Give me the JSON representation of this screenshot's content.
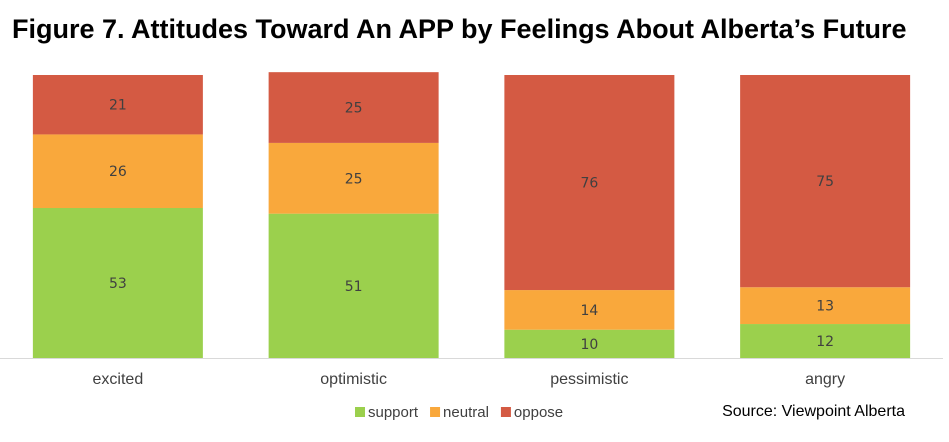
{
  "title": "Figure 7. Attitudes Toward An APP by Feelings About Alberta’s Future",
  "source": "Source: Viewpoint Alberta",
  "colors": {
    "support": "#9bd04d",
    "neutral": "#f9a83c",
    "oppose": "#d45a43",
    "axis": "#d9d9d9",
    "label_text": "#404040"
  },
  "chart_data": {
    "type": "bar",
    "stacked": true,
    "categories": [
      "excited",
      "optimistic",
      "pessimistic",
      "angry"
    ],
    "series": [
      {
        "name": "support",
        "values": [
          53,
          51,
          10,
          12
        ]
      },
      {
        "name": "neutral",
        "values": [
          26,
          25,
          14,
          13
        ]
      },
      {
        "name": "oppose",
        "values": [
          21,
          25,
          76,
          75
        ]
      }
    ],
    "ylim": [
      0,
      100
    ],
    "legend_position": "bottom",
    "grid": false,
    "data_labels": true
  }
}
